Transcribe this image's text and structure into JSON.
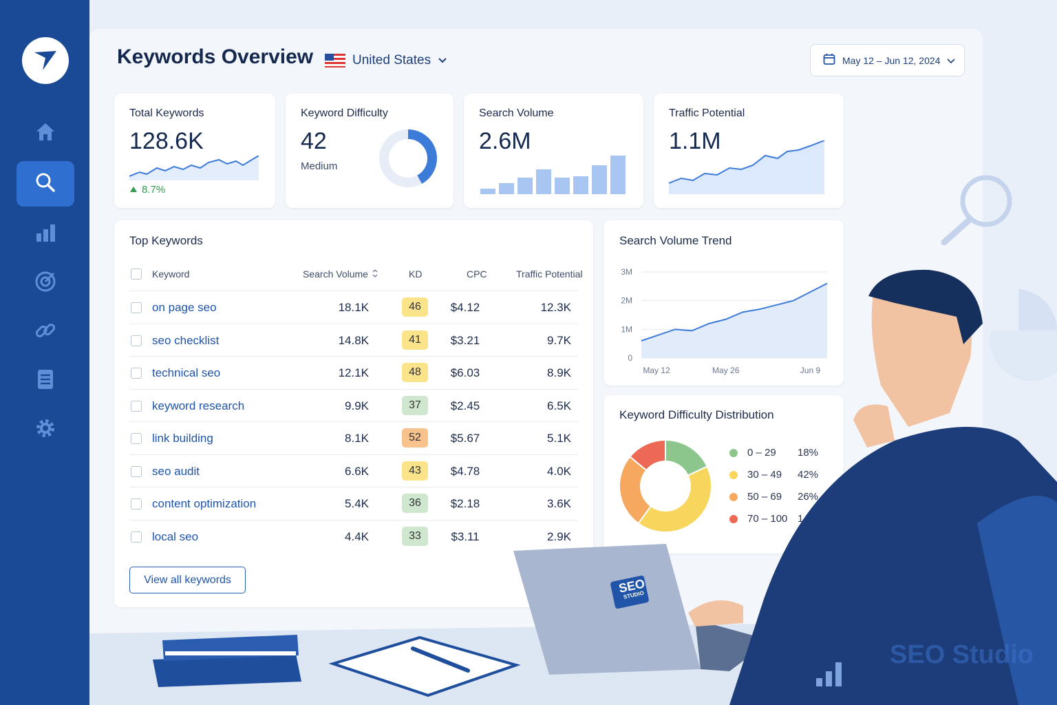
{
  "header": {
    "title": "Keywords Overview",
    "country": "United States",
    "date_range": "May 12 – Jun 12, 2024"
  },
  "colors": {
    "sidebar": "#1a4a96",
    "accent": "#2f6fd0",
    "kd_green": "#cfe7cf",
    "kd_yellow": "#fbe38a",
    "kd_orange": "#f8c28c"
  },
  "sidebar": {
    "items": [
      {
        "icon": "home-icon"
      },
      {
        "icon": "search-icon",
        "active": true
      },
      {
        "icon": "bar-chart-icon"
      },
      {
        "icon": "target-icon"
      },
      {
        "icon": "link-icon"
      },
      {
        "icon": "document-icon"
      },
      {
        "icon": "gear-icon"
      }
    ]
  },
  "stats": {
    "total_keywords": {
      "label": "Total Keywords",
      "value": "128.6K",
      "change": "8.7%"
    },
    "keyword_difficulty": {
      "label": "Keyword Difficulty",
      "value": "42",
      "level": "Medium",
      "fill": 0.42
    },
    "search_volume": {
      "label": "Search Volume",
      "value": "2.6M"
    },
    "traffic_potential": {
      "label": "Traffic Potential",
      "value": "1.1M"
    }
  },
  "top_keywords": {
    "title": "Top Keywords",
    "columns": [
      "Keyword",
      "Search Volume",
      "KD",
      "CPC",
      "Traffic Potential"
    ],
    "rows": [
      {
        "keyword": "on page seo",
        "volume": "18.1K",
        "kd": "46",
        "cpc": "$4.12",
        "traffic": "12.3K",
        "kd_color": "#fbe38a"
      },
      {
        "keyword": "seo checklist",
        "volume": "14.8K",
        "kd": "41",
        "cpc": "$3.21",
        "traffic": "9.7K",
        "kd_color": "#fbe38a"
      },
      {
        "keyword": "technical seo",
        "volume": "12.1K",
        "kd": "48",
        "cpc": "$6.03",
        "traffic": "8.9K",
        "kd_color": "#fbe38a"
      },
      {
        "keyword": "keyword research",
        "volume": "9.9K",
        "kd": "37",
        "cpc": "$2.45",
        "traffic": "6.5K",
        "kd_color": "#cfe7cf"
      },
      {
        "keyword": "link building",
        "volume": "8.1K",
        "kd": "52",
        "cpc": "$5.67",
        "traffic": "5.1K",
        "kd_color": "#f8c28c"
      },
      {
        "keyword": "seo audit",
        "volume": "6.6K",
        "kd": "43",
        "cpc": "$4.78",
        "traffic": "4.0K",
        "kd_color": "#fbe38a"
      },
      {
        "keyword": "content optimization",
        "volume": "5.4K",
        "kd": "36",
        "cpc": "$2.18",
        "traffic": "3.6K",
        "kd_color": "#cfe7cf"
      },
      {
        "keyword": "local seo",
        "volume": "4.4K",
        "kd": "33",
        "cpc": "$3.11",
        "traffic": "2.9K",
        "kd_color": "#cfe7cf"
      }
    ],
    "view_all": "View all keywords"
  },
  "trend": {
    "title": "Search Volume Trend",
    "y_ticks": [
      "3M",
      "2M",
      "1M",
      "0"
    ],
    "x_ticks": [
      "May 12",
      "May 26",
      "Jun 9"
    ]
  },
  "distribution": {
    "title": "Keyword Difficulty Distribution",
    "items": [
      {
        "range": "0 – 29",
        "pct": "18%",
        "color": "#8cc68c"
      },
      {
        "range": "30 – 49",
        "pct": "42%",
        "color": "#f8d55c"
      },
      {
        "range": "50 – 69",
        "pct": "26%",
        "color": "#f6a85e"
      },
      {
        "range": "70 – 100",
        "pct": "14%",
        "color": "#ec6a55"
      }
    ]
  },
  "chart_data": [
    {
      "type": "line",
      "title": "Search Volume Trend",
      "x": [
        "May 12",
        "May 15",
        "May 18",
        "May 21",
        "May 24",
        "May 26",
        "May 29",
        "Jun 1",
        "Jun 4",
        "Jun 6",
        "Jun 9",
        "Jun 12"
      ],
      "values": [
        0.6,
        0.8,
        1.0,
        0.95,
        1.2,
        1.35,
        1.6,
        1.7,
        1.85,
        2.0,
        2.3,
        2.6
      ],
      "ylim": [
        0,
        3
      ],
      "ylabel_ticks": [
        "0",
        "1M",
        "2M",
        "3M"
      ]
    },
    {
      "type": "pie",
      "title": "Keyword Difficulty Distribution",
      "categories": [
        "0 – 29",
        "30 – 49",
        "50 – 69",
        "70 – 100"
      ],
      "values": [
        18,
        42,
        26,
        14
      ]
    }
  ],
  "branding": {
    "laptop_sticker": "SEO",
    "laptop_sticker_sub": "STUDIO",
    "watermark": "SEO Studio"
  }
}
